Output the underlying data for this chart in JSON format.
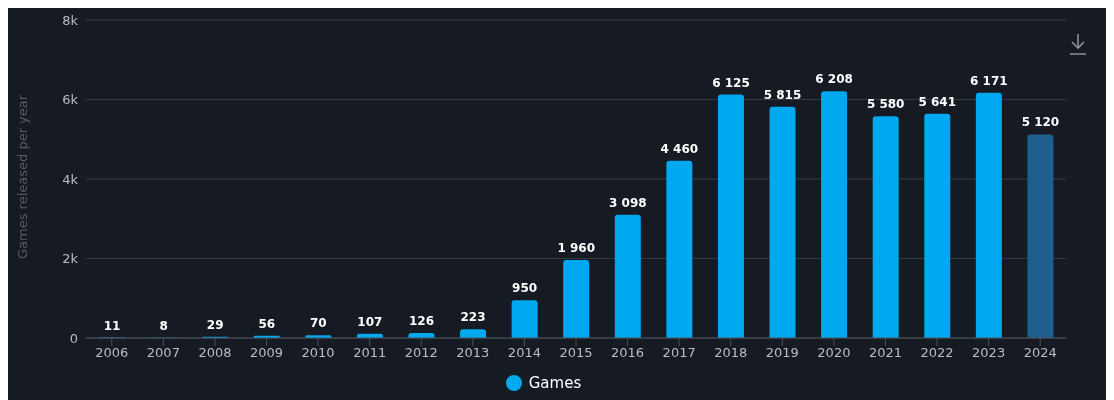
{
  "chart_data": {
    "type": "bar",
    "ylabel": "Games released per year",
    "categories": [
      "2006",
      "2007",
      "2008",
      "2009",
      "2010",
      "2011",
      "2012",
      "2013",
      "2014",
      "2015",
      "2016",
      "2017",
      "2018",
      "2019",
      "2020",
      "2021",
      "2022",
      "2023",
      "2024"
    ],
    "series": [
      {
        "name": "Games",
        "color": "#00a8f0",
        "values": [
          11,
          8,
          29,
          56,
          70,
          107,
          126,
          223,
          950,
          1960,
          3098,
          4460,
          6125,
          5815,
          6208,
          5580,
          5641,
          6171,
          5120
        ],
        "colors": [
          "#00a8f0",
          "#00a8f0",
          "#00a8f0",
          "#00a8f0",
          "#00a8f0",
          "#00a8f0",
          "#00a8f0",
          "#00a8f0",
          "#00a8f0",
          "#00a8f0",
          "#00a8f0",
          "#00a8f0",
          "#00a8f0",
          "#00a8f0",
          "#00a8f0",
          "#00a8f0",
          "#00a8f0",
          "#00a8f0",
          "#1f5f8f"
        ],
        "value_labels": [
          "11",
          "8",
          "29",
          "56",
          "70",
          "107",
          "126",
          "223",
          "950",
          "1 960",
          "3 098",
          "4 460",
          "6 125",
          "5 815",
          "6 208",
          "5 580",
          "5 641",
          "6 171",
          "5 120"
        ]
      }
    ],
    "ylim": [
      0,
      8000
    ],
    "yticks": [
      {
        "value": 0,
        "label": "0"
      },
      {
        "value": 2000,
        "label": "2k"
      },
      {
        "value": 4000,
        "label": "4k"
      },
      {
        "value": 6000,
        "label": "6k"
      },
      {
        "value": 8000,
        "label": "8k"
      }
    ],
    "grid": "y",
    "legend": "bottom"
  }
}
